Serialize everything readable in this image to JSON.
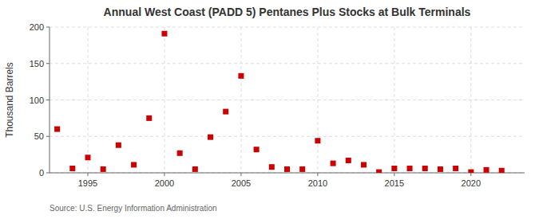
{
  "chart_data": {
    "type": "scatter",
    "title": "Annual West Coast (PADD 5) Pentanes Plus Stocks at Bulk Terminals",
    "y_label": "Thousand Barrels",
    "source": "Source: U.S. Energy Information Administration",
    "x": [
      1993,
      1994,
      1995,
      1996,
      1997,
      1998,
      1999,
      2000,
      2001,
      2002,
      2003,
      2004,
      2005,
      2006,
      2007,
      2008,
      2009,
      2010,
      2011,
      2012,
      2013,
      2014,
      2015,
      2016,
      2017,
      2018,
      2019,
      2020,
      2021,
      2022
    ],
    "values": [
      60,
      6,
      21,
      5,
      38,
      11,
      75,
      191,
      27,
      5,
      49,
      84,
      133,
      32,
      8,
      5,
      5,
      44,
      13,
      17,
      11,
      1,
      6,
      6,
      6,
      5,
      6,
      1,
      4,
      3
    ],
    "color": "#cc0000",
    "marker": "square",
    "xlim": [
      1992.5,
      2023.5
    ],
    "xticks": [
      1995,
      2000,
      2005,
      2010,
      2015,
      2020
    ],
    "ylim": [
      0,
      200
    ],
    "yticks": [
      0,
      50,
      100,
      150,
      200
    ],
    "grid": true
  }
}
